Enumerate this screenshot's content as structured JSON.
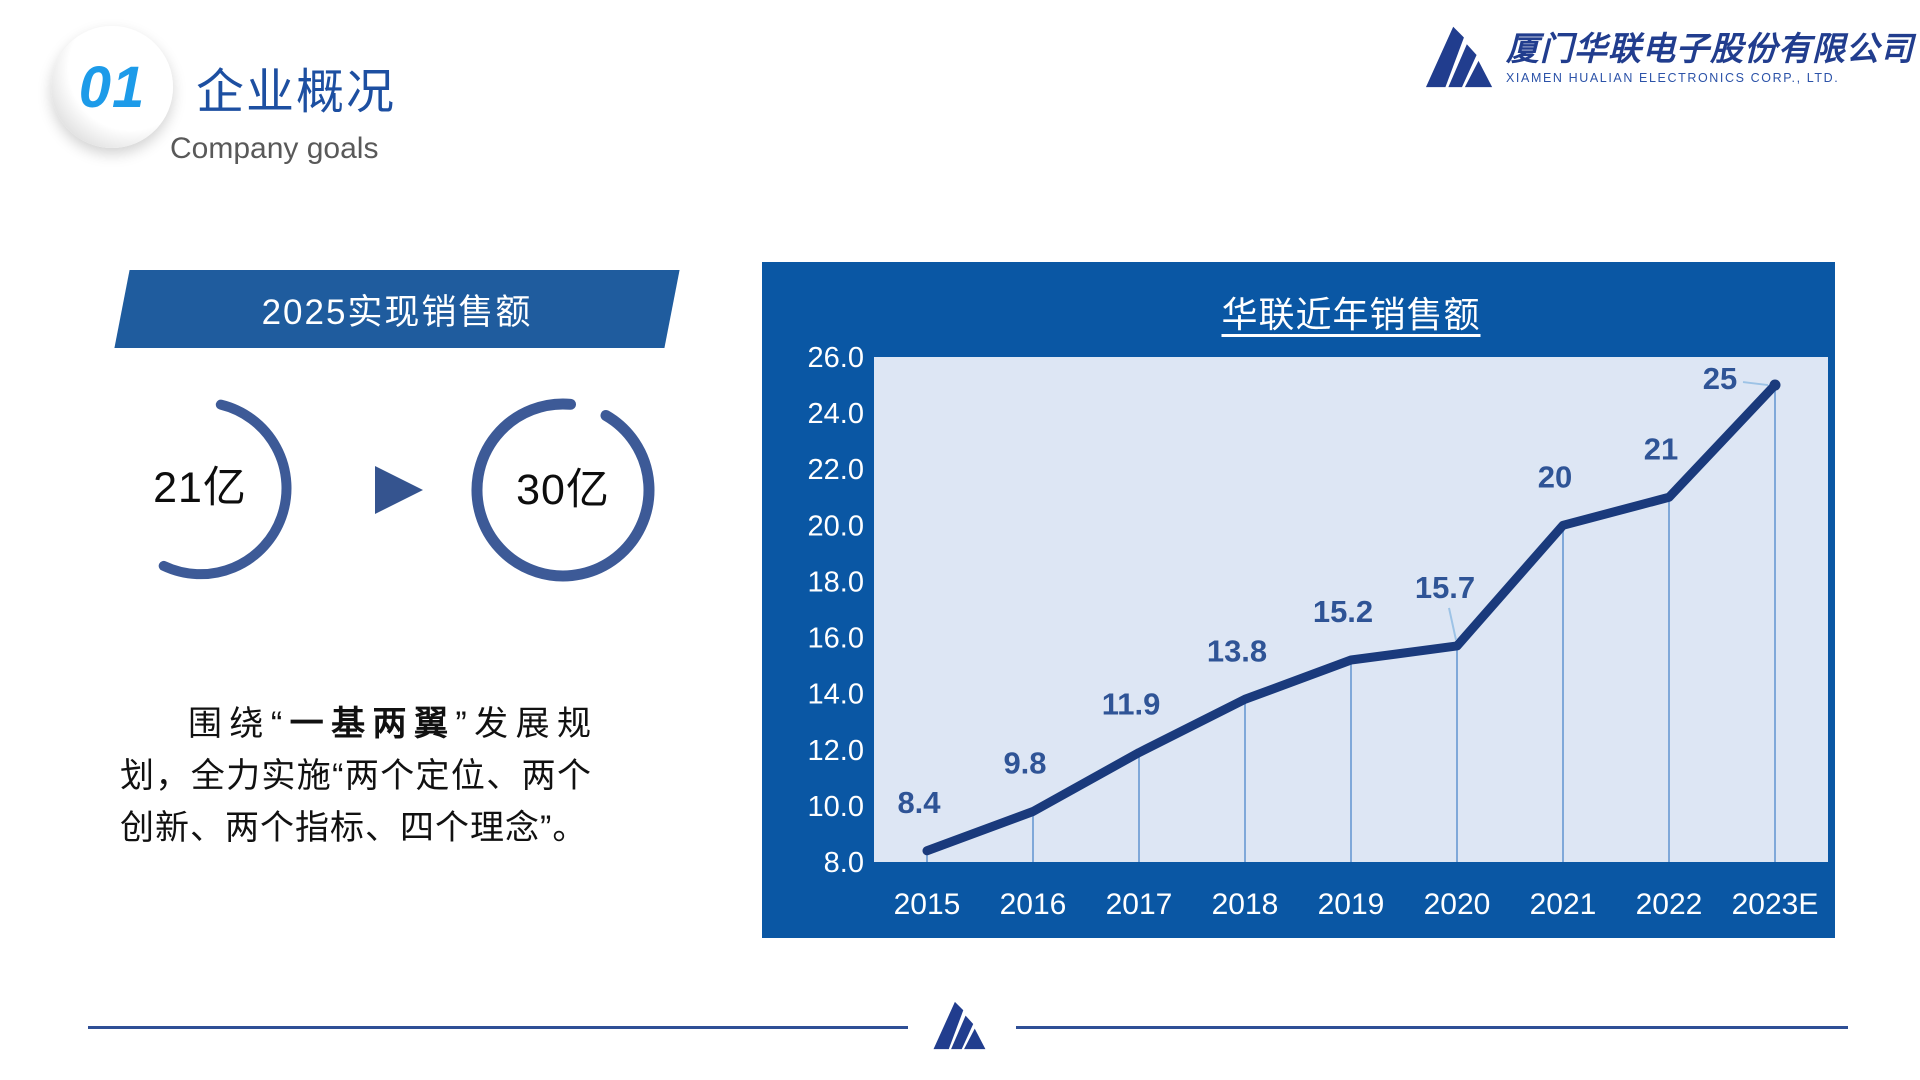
{
  "slide": {
    "section_number": "01",
    "title": "企业概况",
    "subtitle": "Company goals",
    "logo": {
      "company_cn": "厦门华联电子股份有限公司",
      "company_en": "XIAMEN HUALIAN ELECTRONICS CORP., LTD."
    },
    "goal": {
      "banner": "2025实现销售额",
      "current": "21亿",
      "target": "30亿",
      "arrow_icon": "▶"
    },
    "paragraph": {
      "prefix": "围绕“",
      "bold": "一基两翼",
      "suffix": "”发展规划，全力实施“两个定位、两个创新、两个指标、四个理念”。"
    }
  },
  "chart_data": {
    "type": "line",
    "title": "华联近年销售额",
    "categories": [
      "2015",
      "2016",
      "2017",
      "2018",
      "2019",
      "2020",
      "2021",
      "2022",
      "2023E"
    ],
    "values": [
      8.4,
      9.8,
      11.9,
      13.8,
      15.2,
      15.7,
      20,
      21,
      25
    ],
    "labels": [
      "8.4",
      "9.8",
      "11.9",
      "13.8",
      "15.2",
      "15.7",
      "20",
      "21",
      "25"
    ],
    "ylim": [
      8,
      26
    ],
    "ytick_labels": [
      "26.0",
      "24.0",
      "22.0",
      "20.0",
      "18.0",
      "16.0",
      "14.0",
      "12.0",
      "10.0",
      "8.0"
    ],
    "xlabel": "",
    "ylabel": "",
    "legend": "none",
    "grid": "vertical drop lines from each point to x-axis"
  },
  "colors": {
    "panel_bg": "#0a57a4",
    "plot_bg": "#dde6f4",
    "line": "#1a3a7c",
    "value_label": "#2f5496",
    "drop_line": "#7fa8d9",
    "leader_line": "#9dc3e6",
    "tick_text": "#ffffff",
    "banner_bg": "#1f5c9e",
    "arc": "#3d5a97",
    "arrow": "#35548f",
    "accent_blue": "#1d9be9",
    "title_blue": "#1d4fa1",
    "logo_navy": "#213d8e",
    "footer_line": "#2f4f96"
  }
}
